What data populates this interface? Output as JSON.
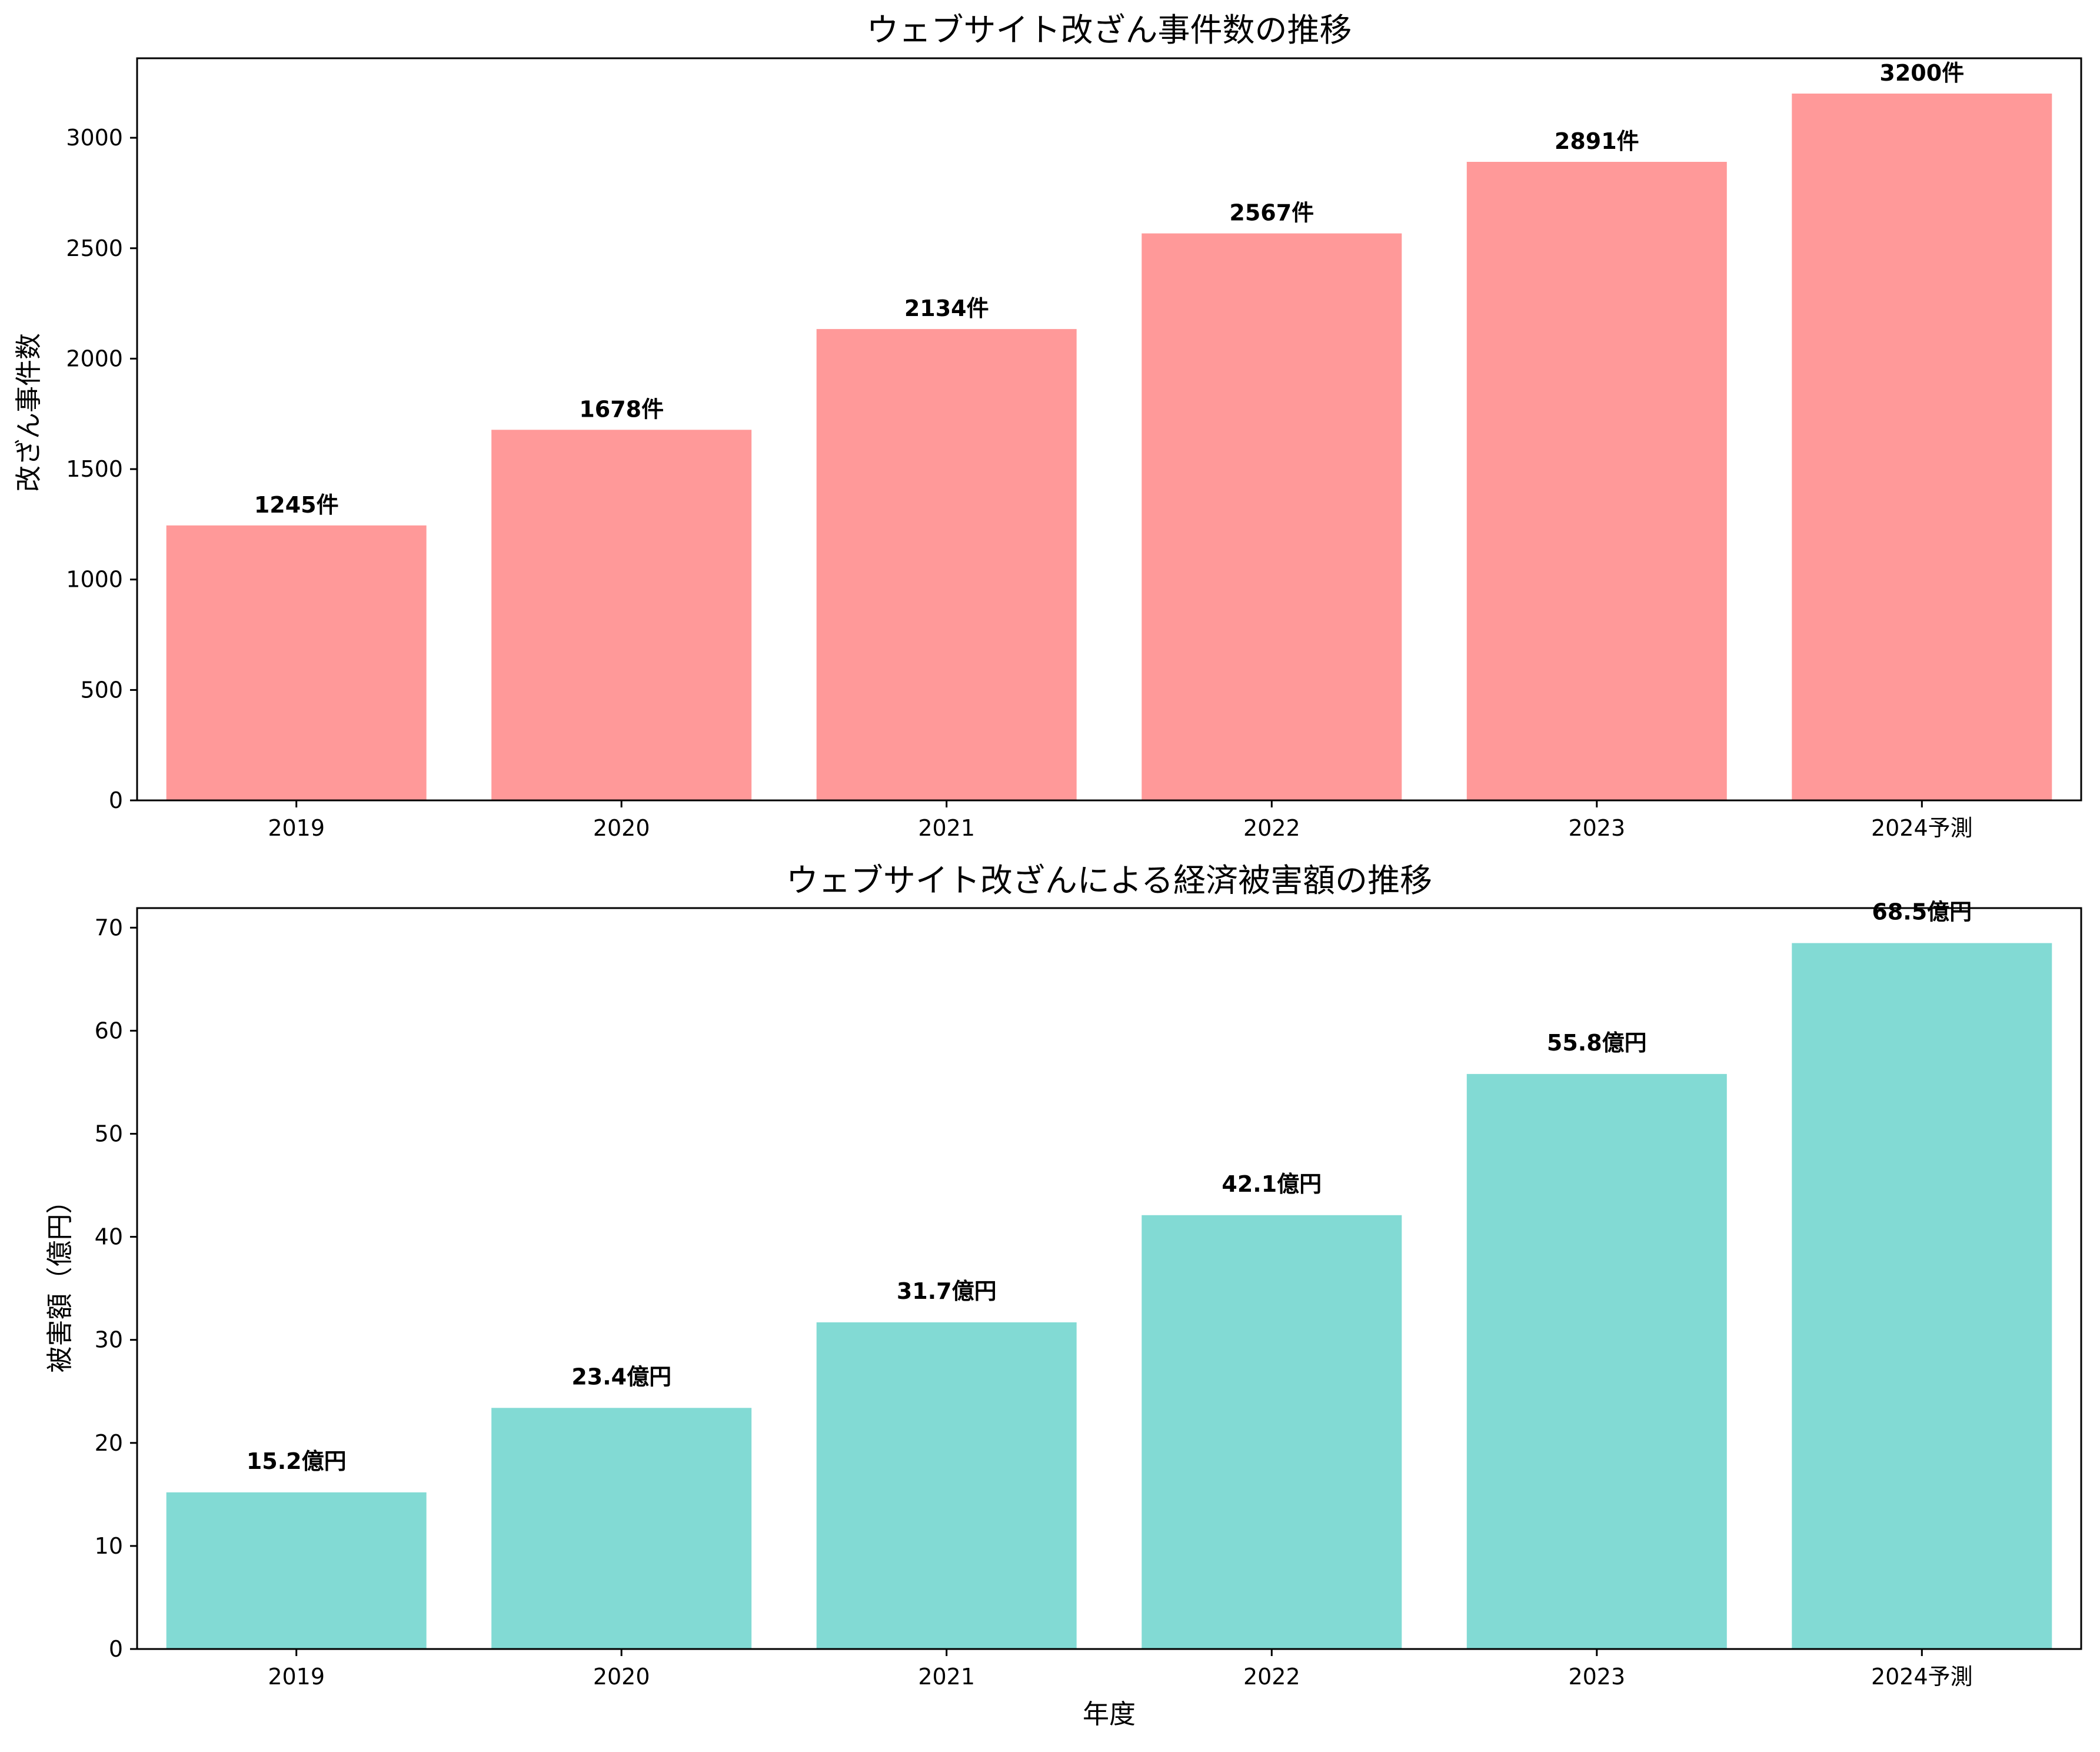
{
  "chart_data": [
    {
      "type": "bar",
      "title": "ウェブサイト改ざん事件数の推移",
      "xlabel": "",
      "ylabel": "改ざん事件数",
      "categories": [
        "2019",
        "2020",
        "2021",
        "2022",
        "2023",
        "2024予測"
      ],
      "values": [
        1245,
        1678,
        2134,
        2567,
        2891,
        3200
      ],
      "data_labels": [
        "1245件",
        "1678件",
        "2134件",
        "2567件",
        "2891件",
        "3200件"
      ],
      "ylim": [
        0,
        3360
      ],
      "yticks": [
        0,
        500,
        1000,
        1500,
        2000,
        2500,
        3000
      ],
      "bar_color": "#ff9999",
      "grid": false,
      "legend": "none"
    },
    {
      "type": "bar",
      "title": "ウェブサイト改ざんによる経済被害額の推移",
      "xlabel": "年度",
      "ylabel": "被害額（億円）",
      "categories": [
        "2019",
        "2020",
        "2021",
        "2022",
        "2023",
        "2024予測"
      ],
      "values": [
        15.2,
        23.4,
        31.7,
        42.1,
        55.8,
        68.5
      ],
      "data_labels": [
        "15.2億円",
        "23.4億円",
        "31.7億円",
        "42.1億円",
        "55.8億円",
        "68.5億円"
      ],
      "ylim": [
        0,
        71.9
      ],
      "yticks": [
        0,
        10,
        20,
        30,
        40,
        50,
        60,
        70
      ],
      "bar_color": "#82dad4",
      "grid": false,
      "legend": "none"
    }
  ]
}
